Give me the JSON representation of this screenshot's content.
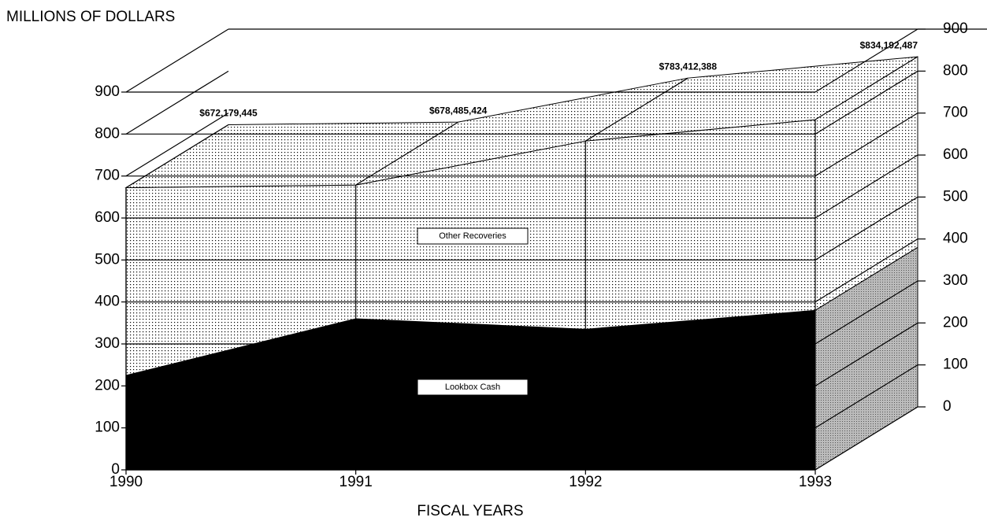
{
  "chart_data": {
    "type": "area3d",
    "y_axis_label": "MILLIONS OF DOLLARS",
    "x_axis_label": "FISCAL YEARS",
    "categories": [
      "1990",
      "1991",
      "1992",
      "1993"
    ],
    "series": [
      {
        "name": "Lookbox Cash",
        "color": "#000000",
        "values": [
          225,
          360,
          335,
          380
        ]
      },
      {
        "name": "Other Recoveries",
        "color": "#000000",
        "values": [
          447.2,
          318.5,
          448.4,
          454.2
        ]
      }
    ],
    "totals": {
      "values": [
        672.179445,
        678.485424,
        783.412388,
        834.192487
      ],
      "value_labels": [
        "$672,179,445",
        "$678,485,424",
        "$783,412,388",
        "$834,192,487"
      ]
    },
    "ylim": [
      0,
      900
    ],
    "yticks": [
      0,
      100,
      200,
      300,
      400,
      500,
      600,
      700,
      800,
      900
    ],
    "y2lim": [
      0,
      900
    ],
    "y2ticks": [
      0,
      100,
      200,
      300,
      400,
      500,
      600,
      700,
      800,
      900
    ],
    "grid": true
  }
}
